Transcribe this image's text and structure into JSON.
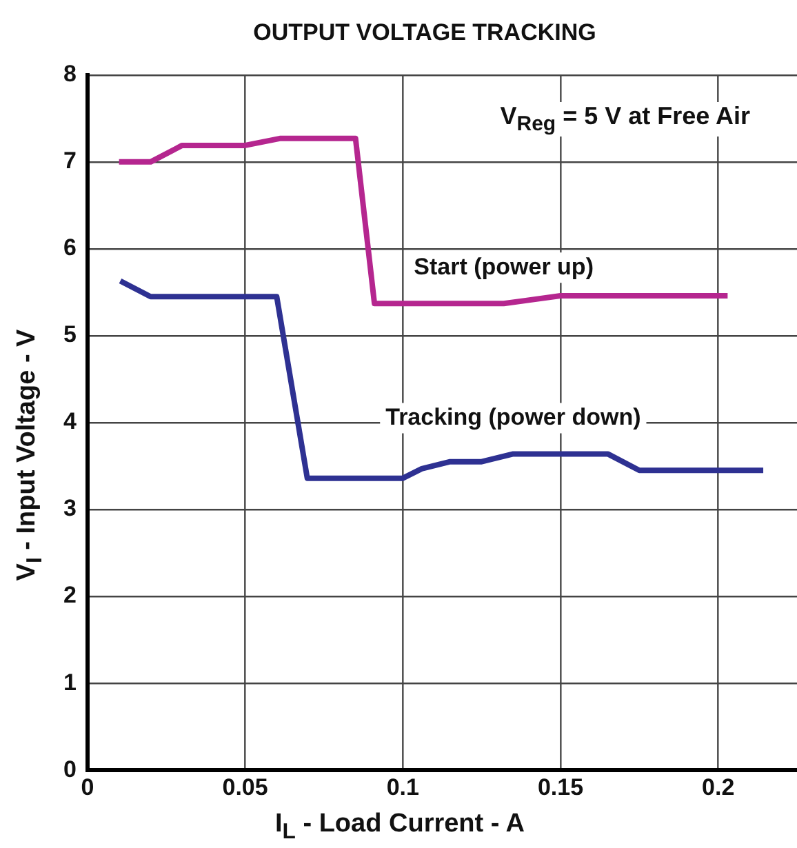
{
  "chart_data": {
    "type": "line",
    "title": "OUTPUT VOLTAGE TRACKING",
    "xlabel": "I$_{L}$ - Load Current - A",
    "ylabel": "V$_{I}$ - Input Voltage - V",
    "annotations": [
      "V$_{Reg}$ = 5 V at Free Air"
    ],
    "series": [
      {
        "name": "Start (power up)",
        "color": "#b5268f",
        "x": [
          0.01,
          0.02,
          0.03,
          0.05,
          0.061,
          0.085,
          0.091,
          0.132,
          0.15,
          0.203
        ],
        "values": [
          7.0,
          7.0,
          7.19,
          7.19,
          7.27,
          7.27,
          5.37,
          5.37,
          5.46,
          5.46
        ]
      },
      {
        "name": "Tracking (power down)",
        "color": "#2e3192",
        "x": [
          0.0104,
          0.02,
          0.06,
          0.0697,
          0.1,
          0.106,
          0.115,
          0.125,
          0.135,
          0.165,
          0.175,
          0.2143
        ],
        "values": [
          5.63,
          5.45,
          5.45,
          3.36,
          3.36,
          3.47,
          3.55,
          3.55,
          3.64,
          3.64,
          3.45,
          3.45
        ]
      }
    ],
    "xlim": [
      0,
      0.225
    ],
    "xticks": [
      0,
      0.05,
      0.1,
      0.15,
      0.2
    ],
    "ylim": [
      0,
      8
    ],
    "yticks": [
      0,
      1,
      2,
      3,
      4,
      5,
      6,
      7,
      8
    ],
    "grid": true,
    "legend": false,
    "marker": "none",
    "line_style": "solid"
  }
}
